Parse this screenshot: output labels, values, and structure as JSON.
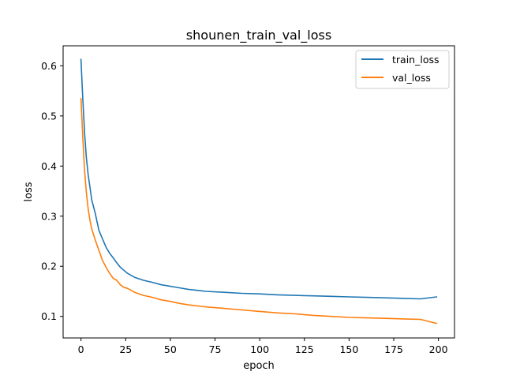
{
  "chart_data": {
    "type": "line",
    "title": "shounen_train_val_loss",
    "xlabel": "epoch",
    "ylabel": "loss",
    "xlim": [
      -10,
      209
    ],
    "ylim": [
      0.057,
      0.64
    ],
    "xticks": [
      0,
      25,
      50,
      75,
      100,
      125,
      150,
      175,
      200
    ],
    "yticks": [
      0.1,
      0.2,
      0.3,
      0.4,
      0.5,
      0.6
    ],
    "ytick_labels": [
      "0.1",
      "0.2",
      "0.3",
      "0.4",
      "0.5",
      "0.6"
    ],
    "grid": false,
    "legend": "top-right",
    "series": [
      {
        "name": "train_loss",
        "color": "#1f77b4",
        "x": [
          0,
          1,
          2,
          3,
          4,
          5,
          6,
          8,
          10,
          12,
          14,
          16,
          18,
          20,
          22,
          24,
          26,
          28,
          30,
          35,
          40,
          45,
          50,
          55,
          60,
          70,
          80,
          90,
          100,
          110,
          120,
          130,
          140,
          150,
          160,
          170,
          180,
          190,
          199
        ],
        "y": [
          0.613,
          0.535,
          0.466,
          0.418,
          0.383,
          0.358,
          0.333,
          0.305,
          0.272,
          0.255,
          0.238,
          0.226,
          0.217,
          0.207,
          0.198,
          0.192,
          0.186,
          0.182,
          0.178,
          0.172,
          0.168,
          0.163,
          0.16,
          0.157,
          0.154,
          0.15,
          0.148,
          0.146,
          0.145,
          0.143,
          0.142,
          0.141,
          0.14,
          0.139,
          0.138,
          0.137,
          0.136,
          0.135,
          0.139
        ]
      },
      {
        "name": "val_loss",
        "color": "#ff7f0e",
        "x": [
          0,
          1,
          2,
          3,
          4,
          5,
          6,
          8,
          10,
          12,
          14,
          16,
          18,
          20,
          22,
          24,
          26,
          28,
          30,
          35,
          40,
          45,
          50,
          55,
          60,
          70,
          80,
          90,
          100,
          110,
          120,
          130,
          140,
          150,
          160,
          170,
          180,
          190,
          199
        ],
        "y": [
          0.535,
          0.458,
          0.391,
          0.348,
          0.315,
          0.292,
          0.275,
          0.252,
          0.232,
          0.212,
          0.198,
          0.186,
          0.176,
          0.172,
          0.163,
          0.158,
          0.156,
          0.152,
          0.148,
          0.142,
          0.138,
          0.133,
          0.13,
          0.126,
          0.123,
          0.119,
          0.116,
          0.113,
          0.11,
          0.107,
          0.105,
          0.102,
          0.1,
          0.098,
          0.097,
          0.096,
          0.095,
          0.094,
          0.086
        ]
      }
    ]
  }
}
